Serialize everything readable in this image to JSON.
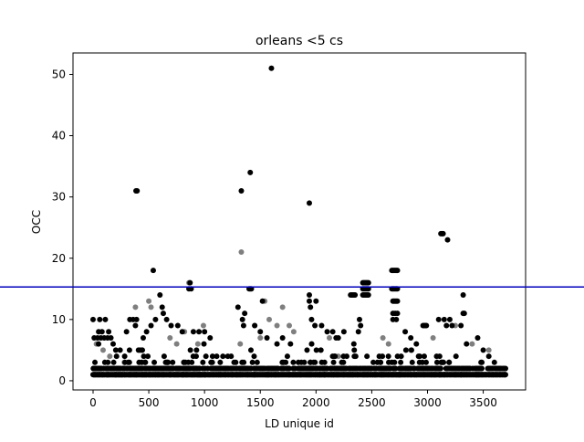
{
  "chart_data": {
    "type": "scatter",
    "title": "orleans <5 cs",
    "xlabel": "LD unique id",
    "ylabel": "OCC",
    "xlim": [
      -180,
      3880
    ],
    "ylim": [
      -1.5,
      53.5
    ],
    "xticks": [
      0,
      500,
      1000,
      1500,
      2000,
      2500,
      3000,
      3500
    ],
    "yticks": [
      0,
      10,
      20,
      30,
      40,
      50
    ],
    "grid": false,
    "marker_color": "#000000",
    "threshold_line": {
      "y": 15.3,
      "color": "#0000bb"
    },
    "series": [
      {
        "points_opaque": [
          [
            0,
            10
          ],
          [
            60,
            10
          ],
          [
            110,
            10
          ],
          [
            50,
            8
          ],
          [
            80,
            8
          ],
          [
            140,
            8
          ],
          [
            10,
            7
          ],
          [
            40,
            7
          ],
          [
            70,
            7
          ],
          [
            100,
            7
          ],
          [
            130,
            7
          ],
          [
            160,
            7
          ],
          [
            180,
            6
          ],
          [
            300,
            8
          ],
          [
            330,
            10
          ],
          [
            360,
            10
          ],
          [
            380,
            9
          ],
          [
            390,
            10
          ],
          [
            385,
            31
          ],
          [
            395,
            31
          ],
          [
            540,
            18
          ],
          [
            600,
            14
          ],
          [
            620,
            12
          ],
          [
            630,
            11
          ],
          [
            660,
            10
          ],
          [
            700,
            9
          ],
          [
            560,
            10
          ],
          [
            520,
            9
          ],
          [
            480,
            8
          ],
          [
            450,
            7
          ],
          [
            860,
            15
          ],
          [
            880,
            15
          ],
          [
            870,
            16
          ],
          [
            760,
            9
          ],
          [
            800,
            8
          ],
          [
            900,
            8
          ],
          [
            950,
            8
          ],
          [
            1000,
            8
          ],
          [
            1050,
            7
          ],
          [
            1330,
            31
          ],
          [
            1410,
            34
          ],
          [
            1600,
            51
          ],
          [
            1400,
            15
          ],
          [
            1410,
            15
          ],
          [
            1420,
            15
          ],
          [
            1300,
            12
          ],
          [
            1350,
            9
          ],
          [
            1340,
            10
          ],
          [
            1360,
            11
          ],
          [
            1450,
            9
          ],
          [
            1500,
            8
          ],
          [
            1520,
            13
          ],
          [
            1560,
            7
          ],
          [
            1650,
            6
          ],
          [
            1700,
            7
          ],
          [
            1940,
            29
          ],
          [
            1940,
            14
          ],
          [
            1940,
            13
          ],
          [
            1950,
            12
          ],
          [
            1960,
            10
          ],
          [
            1990,
            9
          ],
          [
            2000,
            13
          ],
          [
            2050,
            9
          ],
          [
            2100,
            8
          ],
          [
            2150,
            8
          ],
          [
            2200,
            7
          ],
          [
            2250,
            8
          ],
          [
            2180,
            7
          ],
          [
            2310,
            14
          ],
          [
            2320,
            14
          ],
          [
            2330,
            14
          ],
          [
            2340,
            14
          ],
          [
            2350,
            14
          ],
          [
            2390,
            10
          ],
          [
            2400,
            9
          ],
          [
            2380,
            8
          ],
          [
            2420,
            16
          ],
          [
            2430,
            16
          ],
          [
            2440,
            16
          ],
          [
            2450,
            16
          ],
          [
            2460,
            16
          ],
          [
            2470,
            16
          ],
          [
            2420,
            15
          ],
          [
            2430,
            15
          ],
          [
            2440,
            15
          ],
          [
            2450,
            15
          ],
          [
            2460,
            15
          ],
          [
            2470,
            15
          ],
          [
            2420,
            14
          ],
          [
            2430,
            14
          ],
          [
            2440,
            14
          ],
          [
            2450,
            14
          ],
          [
            2460,
            14
          ],
          [
            2470,
            14
          ],
          [
            2680,
            18
          ],
          [
            2690,
            18
          ],
          [
            2700,
            18
          ],
          [
            2710,
            18
          ],
          [
            2720,
            18
          ],
          [
            2730,
            18
          ],
          [
            2680,
            15
          ],
          [
            2690,
            15
          ],
          [
            2700,
            15
          ],
          [
            2710,
            15
          ],
          [
            2720,
            15
          ],
          [
            2730,
            15
          ],
          [
            2690,
            13
          ],
          [
            2700,
            13
          ],
          [
            2710,
            13
          ],
          [
            2720,
            13
          ],
          [
            2730,
            13
          ],
          [
            2690,
            11
          ],
          [
            2710,
            11
          ],
          [
            2730,
            11
          ],
          [
            2690,
            10
          ],
          [
            2720,
            10
          ],
          [
            2800,
            8
          ],
          [
            2850,
            7
          ],
          [
            2900,
            6
          ],
          [
            2960,
            9
          ],
          [
            2970,
            9
          ],
          [
            2980,
            9
          ],
          [
            2990,
            9
          ],
          [
            3120,
            24
          ],
          [
            3130,
            24
          ],
          [
            3140,
            24
          ],
          [
            3180,
            23
          ],
          [
            3100,
            10
          ],
          [
            3150,
            10
          ],
          [
            3200,
            10
          ],
          [
            3220,
            9
          ],
          [
            3170,
            9
          ],
          [
            3320,
            14
          ],
          [
            3320,
            11
          ],
          [
            3330,
            11
          ],
          [
            3300,
            9
          ],
          [
            3350,
            6
          ],
          [
            3450,
            7
          ],
          [
            3500,
            5
          ],
          [
            3550,
            4
          ],
          [
            3600,
            3
          ],
          [
            3650,
            2
          ],
          [
            3700,
            2
          ]
        ],
        "points_faded": [
          [
            30,
            6
          ],
          [
            90,
            5
          ],
          [
            150,
            4
          ],
          [
            280,
            3
          ],
          [
            380,
            12
          ],
          [
            500,
            13
          ],
          [
            520,
            12
          ],
          [
            690,
            7
          ],
          [
            750,
            6
          ],
          [
            820,
            8
          ],
          [
            860,
            16
          ],
          [
            940,
            6
          ],
          [
            990,
            9
          ],
          [
            1320,
            6
          ],
          [
            1330,
            21
          ],
          [
            1450,
            9
          ],
          [
            1500,
            7
          ],
          [
            1540,
            13
          ],
          [
            1580,
            10
          ],
          [
            1650,
            9
          ],
          [
            1700,
            12
          ],
          [
            1760,
            9
          ],
          [
            1800,
            8
          ],
          [
            1960,
            6
          ],
          [
            2040,
            5
          ],
          [
            2120,
            7
          ],
          [
            2200,
            4
          ],
          [
            2600,
            7
          ],
          [
            2650,
            6
          ],
          [
            2850,
            5
          ],
          [
            3050,
            7
          ],
          [
            3250,
            9
          ],
          [
            3400,
            6
          ],
          [
            3550,
            5
          ]
        ],
        "dense_band": [
          {
            "x0": 0,
            "x1": 3700,
            "ymax": 1,
            "density": 1.0
          },
          {
            "x0": 0,
            "x1": 3700,
            "ymax": 2,
            "density": 0.7
          },
          {
            "x0": 0,
            "x1": 3500,
            "ymax": 3,
            "density": 0.45
          },
          {
            "x0": 0,
            "x1": 3400,
            "ymax": 4,
            "density": 0.3
          },
          {
            "x0": 0,
            "x1": 3300,
            "ymax": 5,
            "density": 0.2
          },
          {
            "x0": 0,
            "x1": 3100,
            "ymax": 6,
            "density": 0.1
          },
          {
            "x0": 0,
            "x1": 2800,
            "ymax": 7,
            "density": 0.05
          }
        ]
      }
    ]
  }
}
